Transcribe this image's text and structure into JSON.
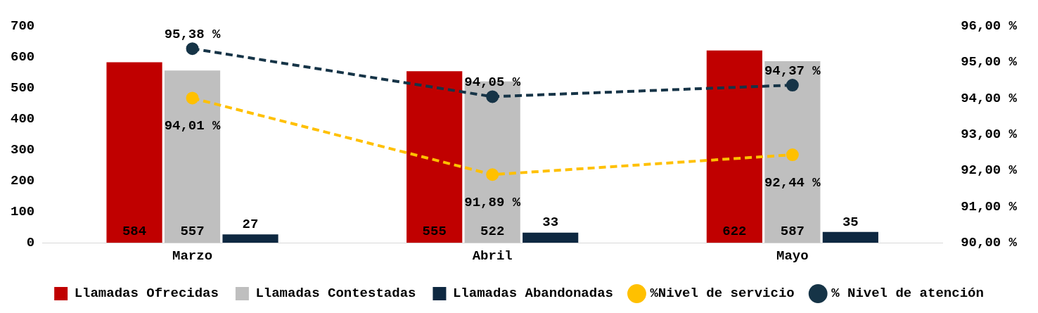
{
  "chart_data": {
    "type": "bar",
    "categories": [
      "Marzo",
      "Abril",
      "Mayo"
    ],
    "series": [
      {
        "name": "Llamadas Ofrecidas",
        "color": "#c00000",
        "values": [
          584,
          555,
          622
        ],
        "value_labels": [
          "584",
          "555",
          "622"
        ]
      },
      {
        "name": "Llamadas Contestadas",
        "color": "#bfbfbf",
        "values": [
          557,
          522,
          587
        ],
        "value_labels": [
          "557",
          "522",
          "587"
        ]
      },
      {
        "name": "Llamadas Abandonadas",
        "color": "#0e2841",
        "values": [
          27,
          33,
          35
        ],
        "value_labels": [
          "27",
          "33",
          "35"
        ]
      },
      {
        "name": "%Nivel de servicio",
        "type": "line",
        "axis": "y2",
        "color": "#ffc000",
        "values": [
          94.01,
          91.89,
          92.44
        ],
        "value_labels": [
          "94,01 %",
          "91,89 %",
          "92,44 %"
        ],
        "marker": "circle",
        "line_style": "dashed"
      },
      {
        "name": "% Nivel de atención",
        "type": "line",
        "axis": "y2",
        "color": "#163447",
        "values": [
          95.38,
          94.05,
          94.37
        ],
        "value_labels": [
          "95,38 %",
          "94,05 %",
          "94,37 %"
        ],
        "marker": "circle",
        "line_style": "dashed"
      }
    ],
    "ylim": [
      0,
      700
    ],
    "yticks": [
      0,
      100,
      200,
      300,
      400,
      500,
      600,
      700
    ],
    "y2lim": [
      90,
      96
    ],
    "y2ticks": [
      {
        "value": 90,
        "label": "90,00 %"
      },
      {
        "value": 91,
        "label": "91,00 %"
      },
      {
        "value": 92,
        "label": "92,00 %"
      },
      {
        "value": 93,
        "label": "93,00 %"
      },
      {
        "value": 94,
        "label": "94,00 %"
      },
      {
        "value": 95,
        "label": "95,00 %"
      },
      {
        "value": 96,
        "label": "96,00 %"
      }
    ],
    "grid": false,
    "legend": "bottom"
  }
}
